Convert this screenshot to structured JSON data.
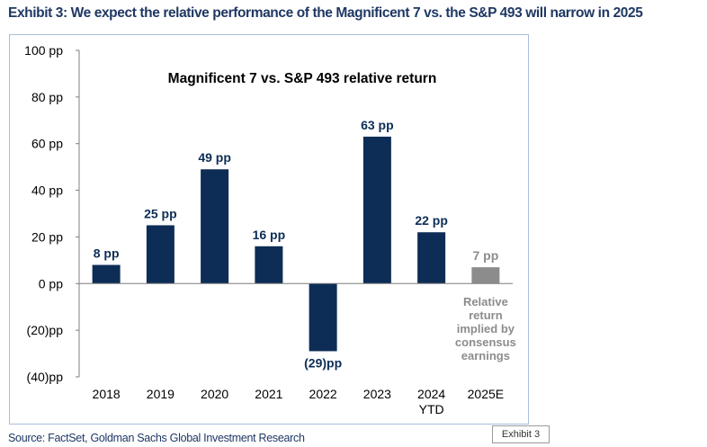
{
  "exhibit_title": "Exhibit 3: We expect the relative performance of the Magnificent 7 vs. the S&P 493 will narrow in 2025",
  "source": "Source: FactSet, Goldman Sachs Global Investment Research",
  "stamp": "Exhibit 3",
  "colors": {
    "bar": "#0d2d56",
    "estimate_bar": "#8c8c8c",
    "title": "#1f3864",
    "frame": "#a9bedc"
  },
  "chart_data": {
    "type": "bar",
    "title": "Magnificent 7 vs. S&P 493 relative return",
    "categories": [
      "2018",
      "2019",
      "2020",
      "2021",
      "2022",
      "2023",
      "2024\nYTD",
      "2025E"
    ],
    "values": [
      8,
      25,
      49,
      16,
      -29,
      63,
      22,
      7
    ],
    "data_labels": [
      "8 pp",
      "25 pp",
      "49 pp",
      "16 pp",
      "(29)pp",
      "63 pp",
      "22 pp",
      "7 pp"
    ],
    "estimate_index": 7,
    "ylim": [
      -40,
      100
    ],
    "yticks": [
      100,
      80,
      60,
      40,
      20,
      0,
      -20,
      -40
    ],
    "ytick_labels": [
      "100 pp",
      "80 pp",
      "60 pp",
      "40 pp",
      "20 pp",
      "0 pp",
      "(20)pp",
      "(40)pp"
    ],
    "annotation": "Relative\nreturn\nimplied by\nconsensus\nearnings",
    "grid": false,
    "legend": "none"
  }
}
